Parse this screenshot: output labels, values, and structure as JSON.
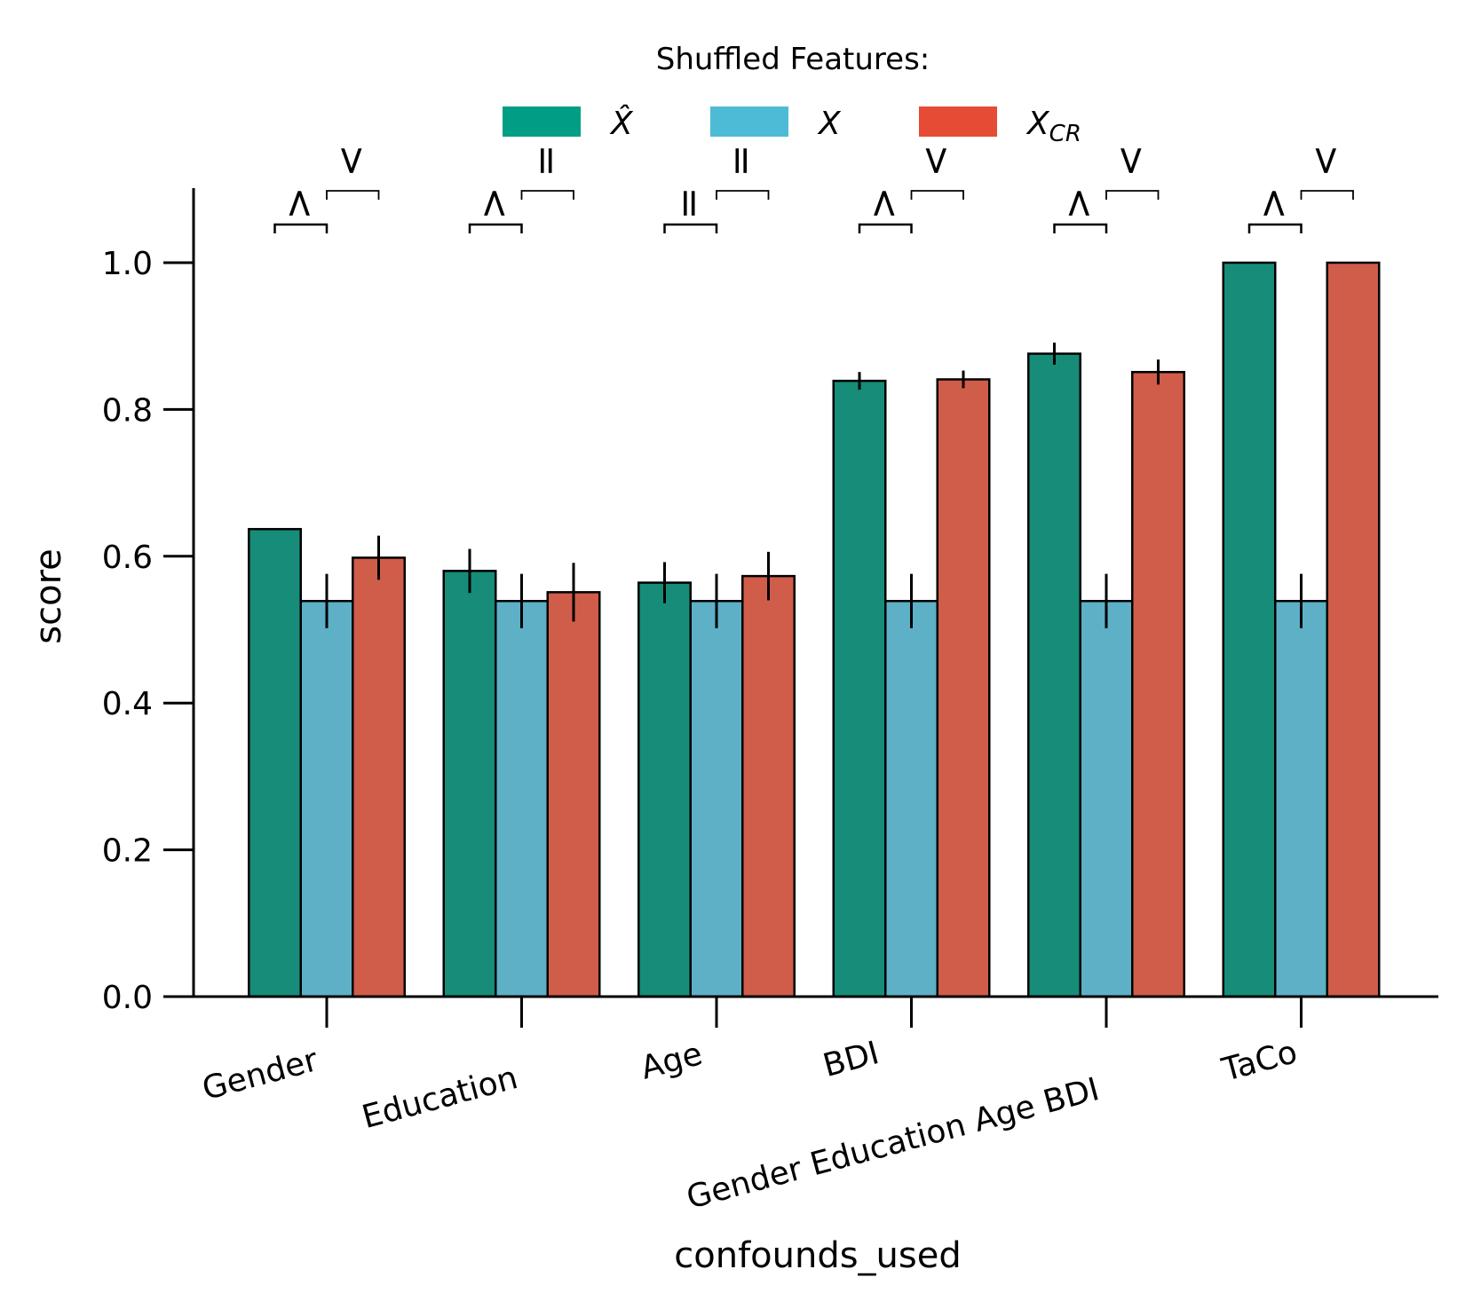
{
  "chart_data": {
    "type": "bar",
    "title": "",
    "xlabel": "confounds_used",
    "ylabel": "score",
    "ylim": [
      0,
      1.1
    ],
    "yticks": [
      0.0,
      0.2,
      0.4,
      0.6,
      0.8,
      1.0
    ],
    "ytick_labels": [
      "0.0",
      "0.2",
      "0.4",
      "0.6",
      "0.8",
      "1.0"
    ],
    "grid": false,
    "legend": {
      "title": "Shuffled Features:",
      "placement": "top-center",
      "entries": [
        {
          "label": "X̂",
          "sub": "",
          "color": "#009E84"
        },
        {
          "label": "X",
          "sub": "",
          "color": "#4DBBD5"
        },
        {
          "label": "X",
          "sub": "CR",
          "color": "#E64B35"
        }
      ]
    },
    "categories": [
      "Gender",
      "Education",
      "Age",
      "BDI",
      "Gender Education Age BDI",
      "TaCo"
    ],
    "series": [
      {
        "name": "X̂",
        "color": "#168C79",
        "values": [
          0.637,
          0.58,
          0.564,
          0.839,
          0.876,
          1.0
        ],
        "errors": [
          0.0,
          0.03,
          0.028,
          0.012,
          0.015,
          0.0
        ]
      },
      {
        "name": "X",
        "color": "#5EB0C7",
        "values": [
          0.539,
          0.539,
          0.539,
          0.539,
          0.539,
          0.539
        ],
        "errors": [
          0.037,
          0.037,
          0.037,
          0.037,
          0.037,
          0.037
        ]
      },
      {
        "name": "X_CR",
        "color": "#D05C4A",
        "values": [
          0.598,
          0.551,
          0.573,
          0.841,
          0.851,
          1.0
        ],
        "errors": [
          0.03,
          0.04,
          0.033,
          0.012,
          0.017,
          0.0
        ]
      }
    ],
    "annotations": {
      "left_comparison": [
        ">",
        ">",
        "=",
        ">",
        ">",
        ">"
      ],
      "right_comparison": [
        "<",
        "=",
        "=",
        "<",
        "<",
        "<"
      ]
    }
  }
}
